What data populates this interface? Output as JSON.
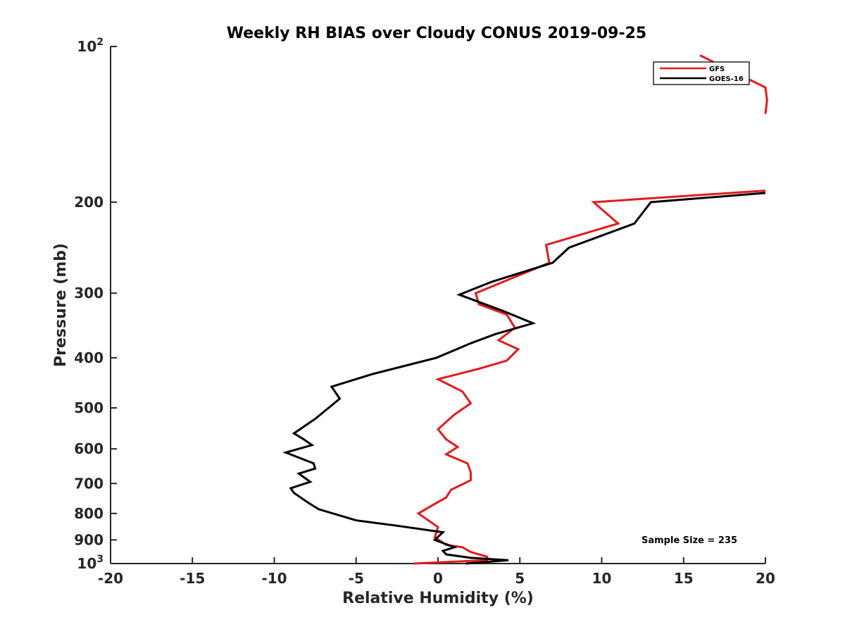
{
  "chart_data": {
    "type": "line",
    "title": "Weekly RH BIAS over Cloudy CONUS 2019-09-25",
    "xlabel": "Relative Humidity (%)",
    "ylabel": "Pressure (mb)",
    "xlim": [
      -20,
      20
    ],
    "ylim": [
      100,
      1000
    ],
    "yscale": "log",
    "y_reversed": true,
    "xticks": [
      -20,
      -15,
      -10,
      -5,
      0,
      5,
      10,
      15,
      20
    ],
    "xtick_labels": [
      "-20",
      "-15",
      "-10",
      "-5",
      "0",
      "5",
      "10",
      "15",
      "20"
    ],
    "yticks": [
      100,
      200,
      300,
      400,
      500,
      600,
      700,
      800,
      900,
      1000
    ],
    "ytick_labels": [
      {
        "base": "10",
        "exp": "2"
      },
      {
        "base": "200"
      },
      {
        "base": "300"
      },
      {
        "base": "400"
      },
      {
        "base": "500"
      },
      {
        "base": "600"
      },
      {
        "base": "700"
      },
      {
        "base": "800"
      },
      {
        "base": "900"
      },
      {
        "base": "10",
        "exp": "3"
      }
    ],
    "grid": false,
    "legend_position": "top-right",
    "annotation": "Sample Size = 235",
    "series": [
      {
        "name": "GFS",
        "color": "#e31a1c",
        "points": [
          [
            -1.5,
            1000
          ],
          [
            3.0,
            985
          ],
          [
            3.0,
            970
          ],
          [
            2.0,
            950
          ],
          [
            1.5,
            930
          ],
          [
            0.5,
            920
          ],
          [
            -0.2,
            890
          ],
          [
            0.0,
            850
          ],
          [
            -1.2,
            800
          ],
          [
            -0.3,
            770
          ],
          [
            0.5,
            745
          ],
          [
            0.8,
            720
          ],
          [
            2.0,
            690
          ],
          [
            2.0,
            665
          ],
          [
            1.8,
            640
          ],
          [
            0.5,
            615
          ],
          [
            1.2,
            595
          ],
          [
            0.5,
            575
          ],
          [
            0.0,
            550
          ],
          [
            1.0,
            515
          ],
          [
            2.0,
            490
          ],
          [
            1.5,
            465
          ],
          [
            0.0,
            440
          ],
          [
            2.5,
            420
          ],
          [
            4.2,
            405
          ],
          [
            4.9,
            385
          ],
          [
            3.7,
            370
          ],
          [
            4.7,
            350
          ],
          [
            4.2,
            330
          ],
          [
            2.5,
            315
          ],
          [
            2.3,
            300
          ],
          [
            4.0,
            285
          ],
          [
            6.8,
            262
          ],
          [
            6.6,
            242
          ],
          [
            11.0,
            220
          ],
          [
            9.5,
            200
          ],
          [
            20,
            190
          ]
        ]
      },
      {
        "name": "GFS",
        "color": "#e31a1c",
        "points": [
          [
            20,
            135
          ],
          [
            20.1,
            127
          ],
          [
            20,
            120
          ],
          [
            16.0,
            104
          ]
        ]
      },
      {
        "name": "GOES-16",
        "color": "#000000",
        "points": [
          [
            1.7,
            1000
          ],
          [
            4.3,
            985
          ],
          [
            2.0,
            975
          ],
          [
            0.5,
            960
          ],
          [
            0.3,
            945
          ],
          [
            1.0,
            930
          ],
          [
            -0.2,
            900
          ],
          [
            0.3,
            870
          ],
          [
            -2.5,
            845
          ],
          [
            -5.0,
            825
          ],
          [
            -7.3,
            785
          ],
          [
            -8.0,
            760
          ],
          [
            -8.8,
            730
          ],
          [
            -9.0,
            715
          ],
          [
            -7.8,
            695
          ],
          [
            -8.5,
            670
          ],
          [
            -7.5,
            655
          ],
          [
            -7.6,
            640
          ],
          [
            -9.3,
            610
          ],
          [
            -7.7,
            590
          ],
          [
            -8.2,
            575
          ],
          [
            -8.8,
            560
          ],
          [
            -7.5,
            525
          ],
          [
            -6.0,
            480
          ],
          [
            -6.5,
            455
          ],
          [
            -4.0,
            430
          ],
          [
            -0.1,
            400
          ],
          [
            2.0,
            375
          ],
          [
            3.5,
            360
          ],
          [
            5.8,
            343
          ],
          [
            4.0,
            325
          ],
          [
            1.3,
            302
          ],
          [
            3.3,
            285
          ],
          [
            7.0,
            262
          ],
          [
            8.0,
            245
          ],
          [
            12.0,
            220
          ],
          [
            13.0,
            200
          ],
          [
            20,
            192
          ]
        ]
      }
    ],
    "legend_entries": [
      {
        "label": "GFS",
        "color": "#e31a1c"
      },
      {
        "label": "GOES-16",
        "color": "#000000"
      }
    ]
  }
}
